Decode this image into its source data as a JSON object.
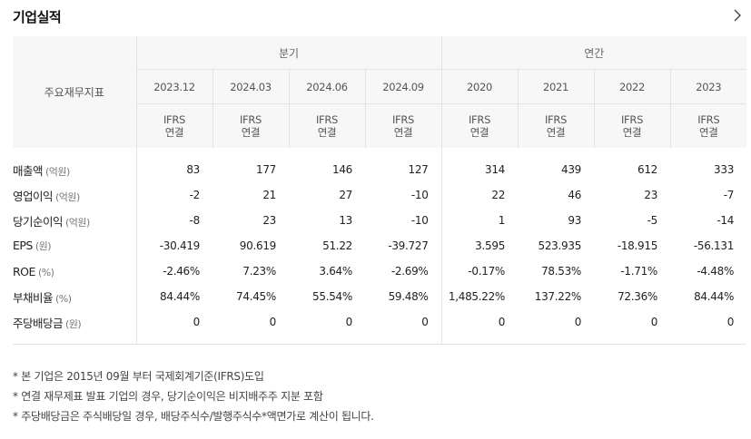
{
  "header": {
    "title": "기업실적"
  },
  "table": {
    "row_header_label": "주요재무지표",
    "groups": [
      {
        "label": "분기",
        "span": 4
      },
      {
        "label": "연간",
        "span": 4
      }
    ],
    "columns": [
      {
        "date": "2023.12",
        "std1": "IFRS",
        "std2": "연결"
      },
      {
        "date": "2024.03",
        "std1": "IFRS",
        "std2": "연결"
      },
      {
        "date": "2024.06",
        "std1": "IFRS",
        "std2": "연결"
      },
      {
        "date": "2024.09",
        "std1": "IFRS",
        "std2": "연결"
      },
      {
        "date": "2020",
        "std1": "IFRS",
        "std2": "연결"
      },
      {
        "date": "2021",
        "std1": "IFRS",
        "std2": "연결"
      },
      {
        "date": "2022",
        "std1": "IFRS",
        "std2": "연결"
      },
      {
        "date": "2023",
        "std1": "IFRS",
        "std2": "연결"
      }
    ],
    "rows": [
      {
        "label": "매출액",
        "unit": "(억원)",
        "values": [
          "83",
          "177",
          "146",
          "127",
          "314",
          "439",
          "612",
          "333"
        ]
      },
      {
        "label": "영업이익",
        "unit": "(억원)",
        "values": [
          "-2",
          "21",
          "27",
          "-10",
          "22",
          "46",
          "23",
          "-7"
        ]
      },
      {
        "label": "당기순이익",
        "unit": "(억원)",
        "values": [
          "-8",
          "23",
          "13",
          "-10",
          "1",
          "93",
          "-5",
          "-14"
        ]
      },
      {
        "label": "EPS",
        "unit": "(원)",
        "values": [
          "-30.419",
          "90.619",
          "51.22",
          "-39.727",
          "3.595",
          "523.935",
          "-18.915",
          "-56.131"
        ]
      },
      {
        "label": "ROE",
        "unit": "(%)",
        "values": [
          "-2.46%",
          "7.23%",
          "3.64%",
          "-2.69%",
          "-0.17%",
          "78.53%",
          "-1.71%",
          "-4.48%"
        ]
      },
      {
        "label": "부채비율",
        "unit": "(%)",
        "values": [
          "84.44%",
          "74.45%",
          "55.54%",
          "59.48%",
          "1,485.22%",
          "137.22%",
          "72.36%",
          "84.44%"
        ]
      },
      {
        "label": "주당배당금",
        "unit": "(원)",
        "values": [
          "0",
          "0",
          "0",
          "0",
          "0",
          "0",
          "0",
          "0"
        ]
      }
    ]
  },
  "notes": [
    "* 본 기업은 2015년 09월 부터 국제회계기준(IFRS)도입",
    "* 연결 재무제표 발표 기업의 경우, 당기순이익은 비지배주주 지분 포함",
    "* 주당배당금은 주식배당일 경우, 배당주식수/발행주식수*액면가로 계산이 됩니다."
  ],
  "icons": {
    "more": "chevron-right-icon"
  }
}
